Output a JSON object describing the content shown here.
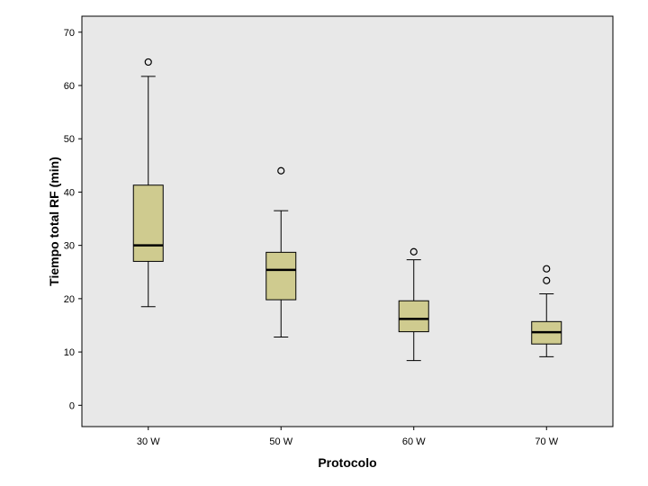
{
  "chart_data": {
    "type": "box",
    "xlabel": "Protocolo",
    "ylabel": "Tiempo total RF (min)",
    "ylim": [
      -4,
      73
    ],
    "yticks": [
      0,
      10,
      20,
      30,
      40,
      50,
      60,
      70
    ],
    "grid": false,
    "colors": {
      "plot_background": "#e8e8e8",
      "box_fill": "#cfcb8f",
      "stroke": "#000000"
    },
    "categories": [
      "30 W",
      "50 W",
      "60 W",
      "70 W"
    ],
    "boxes": [
      {
        "category": "30 W",
        "whisker_low": 18.5,
        "q1": 27.0,
        "median": 30.0,
        "q3": 41.3,
        "whisker_high": 61.7,
        "outliers": [
          64.4
        ]
      },
      {
        "category": "50 W",
        "whisker_low": 12.8,
        "q1": 19.8,
        "median": 25.4,
        "q3": 28.7,
        "whisker_high": 36.5,
        "outliers": [
          44.0
        ]
      },
      {
        "category": "60 W",
        "whisker_low": 8.4,
        "q1": 13.8,
        "median": 16.2,
        "q3": 19.6,
        "whisker_high": 27.3,
        "outliers": [
          28.8
        ]
      },
      {
        "category": "70 W",
        "whisker_low": 9.1,
        "q1": 11.5,
        "median": 13.7,
        "q3": 15.7,
        "whisker_high": 20.9,
        "outliers": [
          23.4,
          25.6
        ]
      }
    ]
  }
}
